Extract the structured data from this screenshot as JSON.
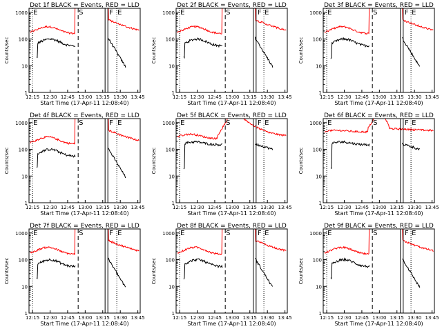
{
  "colors": {
    "events": "#000000",
    "lld": "#ff0000",
    "background": "#ffffff",
    "axes": "#000000"
  },
  "chart_data": [
    {
      "type": "line",
      "title": "Det 1f BLACK = Events, RED = LLD",
      "xlabel": "Start Time (17-Apr-11 12:08:40)",
      "ylabel": "Counts/sec",
      "yscale": "log",
      "ylim": [
        1,
        1000
      ],
      "xlim": [
        "12:12",
        "13:47"
      ],
      "x_ticks": [
        "12:15",
        "12:30",
        "12:45",
        "13:00",
        "13:15",
        "13:30",
        "13:45"
      ],
      "y_ticks": [
        "1",
        "10",
        "100",
        "1000"
      ],
      "markers": [
        {
          "label": "E",
          "x": "12:15",
          "style": "dotted"
        },
        {
          "label": "S",
          "x": "12:54",
          "style": "dashed"
        },
        {
          "label": "F",
          "x": "13:17",
          "style": "solid"
        },
        {
          "label": "E",
          "x": "13:27",
          "style": "dotted"
        }
      ],
      "series": []
    },
    {
      "type": "line",
      "title": "Det 2f BLACK = Events, RED = LLD",
      "xlabel": "Start Time (17-Apr-11 12:08:40)",
      "ylabel": "Counts/sec",
      "yscale": "log",
      "ylim": [
        1,
        1000
      ],
      "xlim": [
        "12:12",
        "13:47"
      ],
      "x_ticks": [
        "12:15",
        "12:30",
        "12:45",
        "13:00",
        "13:15",
        "13:30",
        "13:45"
      ],
      "y_ticks": [
        "1",
        "10",
        "100",
        "1000"
      ],
      "markers": [
        {
          "label": "E",
          "x": "12:15",
          "style": "dotted"
        },
        {
          "label": "S",
          "x": "12:54",
          "style": "dashed"
        },
        {
          "label": "F",
          "x": "13:18",
          "style": "solid"
        },
        {
          "label": "E",
          "x": "13:27",
          "style": "dotted"
        }
      ],
      "series": []
    },
    {
      "type": "line",
      "title": "Det 3f BLACK = Events, RED = LLD",
      "xlabel": "Start Time (17-Apr-11 12:08:40)",
      "ylabel": "Counts/sec",
      "yscale": "log",
      "ylim": [
        1,
        1000
      ],
      "xlim": [
        "12:12",
        "13:47"
      ],
      "x_ticks": [
        "12:15",
        "12:30",
        "12:45",
        "13:00",
        "13:15",
        "13:30",
        "13:45"
      ],
      "y_ticks": [
        "1",
        "10",
        "100",
        "1000"
      ],
      "markers": [
        {
          "label": "E",
          "x": "12:15",
          "style": "dotted"
        },
        {
          "label": "S",
          "x": "12:54",
          "style": "dashed"
        },
        {
          "label": "F",
          "x": "13:18",
          "style": "solid"
        },
        {
          "label": "E",
          "x": "13:27",
          "style": "dotted"
        }
      ],
      "series": []
    },
    {
      "type": "line",
      "title": "Det 4f BLACK = Events, RED = LLD",
      "xlabel": "Start Time (17-Apr-11 12:08:40)",
      "ylabel": "Counts/sec",
      "yscale": "log",
      "ylim": [
        1,
        1000
      ],
      "xlim": [
        "12:12",
        "13:47"
      ],
      "x_ticks": [
        "12:15",
        "12:30",
        "12:45",
        "13:00",
        "13:15",
        "13:30",
        "13:45"
      ],
      "y_ticks": [
        "1",
        "10",
        "100",
        "1000"
      ],
      "markers": [
        {
          "label": "E",
          "x": "12:15",
          "style": "dotted"
        },
        {
          "label": "S",
          "x": "12:54",
          "style": "dashed"
        },
        {
          "label": "F",
          "x": "13:17",
          "style": "solid"
        },
        {
          "label": "E",
          "x": "13:27",
          "style": "dotted"
        }
      ],
      "series": []
    },
    {
      "type": "line",
      "title": "Det 5f BLACK = Events, RED = LLD",
      "xlabel": "Start Time (17-Apr-11 12:08:40)",
      "ylabel": "Counts/sec",
      "yscale": "log",
      "ylim": [
        1,
        1000
      ],
      "xlim": [
        "12:12",
        "13:47"
      ],
      "x_ticks": [
        "12:15",
        "12:30",
        "12:45",
        "13:00",
        "13:15",
        "13:30",
        "13:45"
      ],
      "y_ticks": [
        "1",
        "10",
        "100",
        "1000"
      ],
      "markers": [
        {
          "label": "E",
          "x": "12:15",
          "style": "dotted"
        },
        {
          "label": "S",
          "x": "12:54",
          "style": "dashed"
        },
        {
          "label": "F",
          "x": "13:18",
          "style": "solid"
        },
        {
          "label": "E",
          "x": "13:27",
          "style": "dotted"
        }
      ],
      "series": []
    },
    {
      "type": "line",
      "title": "Det 6f BLACK = Events, RED = LLD",
      "xlabel": "Start Time (17-Apr-11 12:08:40)",
      "ylabel": "Counts/sec",
      "yscale": "log",
      "ylim": [
        1,
        1000
      ],
      "xlim": [
        "12:12",
        "13:47"
      ],
      "x_ticks": [
        "12:15",
        "12:30",
        "12:45",
        "13:00",
        "13:15",
        "13:30",
        "13:45"
      ],
      "y_ticks": [
        "1",
        "10",
        "100",
        "1000"
      ],
      "markers": [
        {
          "label": "E",
          "x": "12:15",
          "style": "dotted"
        },
        {
          "label": "S",
          "x": "12:54",
          "style": "dashed"
        },
        {
          "label": "F",
          "x": "13:18",
          "style": "solid"
        },
        {
          "label": "E",
          "x": "13:27",
          "style": "dotted"
        }
      ],
      "series": []
    },
    {
      "type": "line",
      "title": "Det 7f BLACK = Events, RED = LLD",
      "xlabel": "Start Time (17-Apr-11 12:08:40)",
      "ylabel": "Counts/sec",
      "yscale": "log",
      "ylim": [
        1,
        1000
      ],
      "xlim": [
        "12:12",
        "13:47"
      ],
      "x_ticks": [
        "12:15",
        "12:30",
        "12:45",
        "13:00",
        "13:15",
        "13:30",
        "13:45"
      ],
      "y_ticks": [
        "1",
        "10",
        "100",
        "1000"
      ],
      "markers": [
        {
          "label": "E",
          "x": "12:15",
          "style": "dotted"
        },
        {
          "label": "S",
          "x": "12:54",
          "style": "dashed"
        },
        {
          "label": "F",
          "x": "13:17",
          "style": "solid"
        },
        {
          "label": "E",
          "x": "13:27",
          "style": "dotted"
        }
      ],
      "series": []
    },
    {
      "type": "line",
      "title": "Det 8f BLACK = Events, RED = LLD",
      "xlabel": "Start Time (17-Apr-11 12:08:40)",
      "ylabel": "Counts/sec",
      "yscale": "log",
      "ylim": [
        1,
        1000
      ],
      "xlim": [
        "12:12",
        "13:47"
      ],
      "x_ticks": [
        "12:15",
        "12:30",
        "12:45",
        "13:00",
        "13:15",
        "13:30",
        "13:45"
      ],
      "y_ticks": [
        "1",
        "10",
        "100",
        "1000"
      ],
      "markers": [
        {
          "label": "E",
          "x": "12:15",
          "style": "dotted"
        },
        {
          "label": "S",
          "x": "12:54",
          "style": "dashed"
        },
        {
          "label": "F",
          "x": "13:18",
          "style": "solid"
        },
        {
          "label": "E",
          "x": "13:27",
          "style": "dotted"
        }
      ],
      "series": []
    },
    {
      "type": "line",
      "title": "Det 9f BLACK = Events, RED = LLD",
      "xlabel": "Start Time (17-Apr-11 12:08:40)",
      "ylabel": "Counts/sec",
      "yscale": "log",
      "ylim": [
        1,
        1000
      ],
      "xlim": [
        "12:12",
        "13:47"
      ],
      "x_ticks": [
        "12:15",
        "12:30",
        "12:45",
        "13:00",
        "13:15",
        "13:30",
        "13:45"
      ],
      "y_ticks": [
        "1",
        "10",
        "100",
        "1000"
      ],
      "markers": [
        {
          "label": "E",
          "x": "12:15",
          "style": "dotted"
        },
        {
          "label": "S",
          "x": "12:54",
          "style": "dashed"
        },
        {
          "label": "F",
          "x": "13:18",
          "style": "solid"
        },
        {
          "label": "E",
          "x": "13:27",
          "style": "dotted"
        }
      ],
      "series": []
    }
  ]
}
